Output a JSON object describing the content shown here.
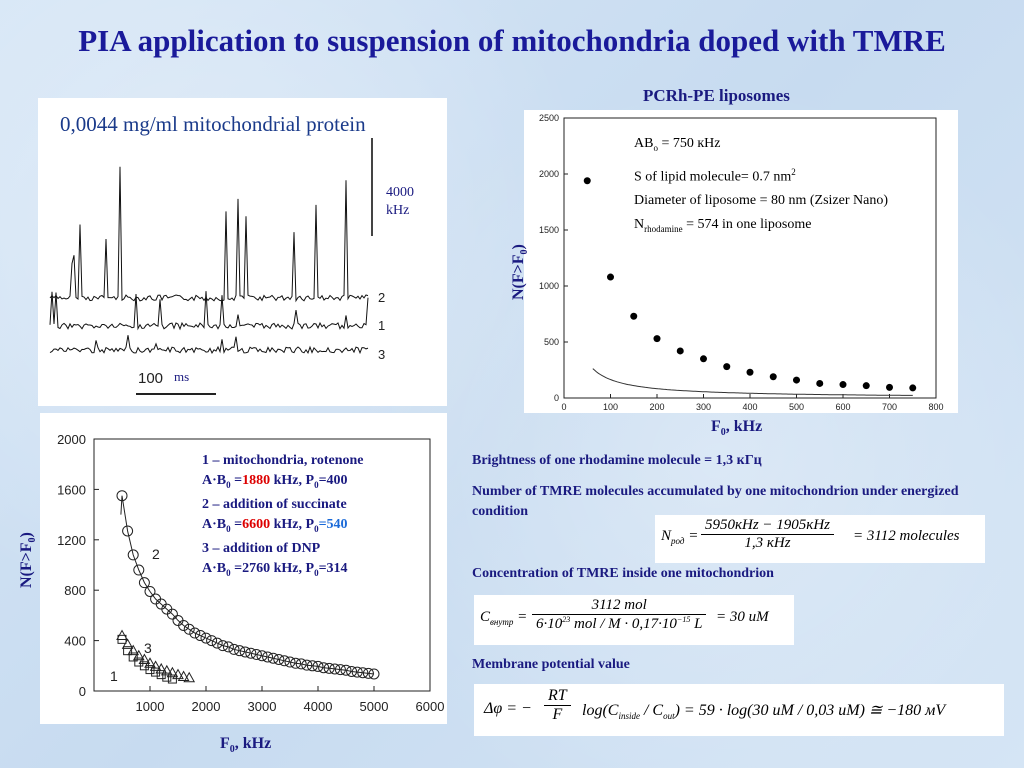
{
  "slide": {
    "title": "PIA application to suspension of mitochondria doped with TMRE",
    "right_chart_title": "PCRh-PE liposomes"
  },
  "trace_panel": {
    "caption": "0,0044 mg/ml mitochondrial protein",
    "scale_value": "4000",
    "scale_unit": "kHz",
    "time_value": "100",
    "time_unit": "ms",
    "trace_labels": [
      "2",
      "1",
      "3"
    ]
  },
  "lower_chart": {
    "ylabel_main": "N(F>F",
    "ylabel_sub": "0",
    "ylabel_end": ")",
    "xlabel_main": "F",
    "xlabel_sub": "0",
    "xlabel_end": ", kHz",
    "legend_lines": [
      {
        "a": "1 – mitochondria, rotenone"
      },
      {
        "a": "A·B",
        "b": "0",
        "c": " =",
        "d": "1880",
        "e": " kHz, P",
        "f": "0",
        "g": "=400",
        "g_color": "#1a1a80"
      },
      {
        "a": "2 – addition of succinate"
      },
      {
        "a": "A·B",
        "b": "0",
        "c": " =",
        "d": "6600",
        "e": " kHz, P",
        "f": "0",
        "g": "=540",
        "g_color": "#1a6ad8"
      },
      {
        "a": "3 – addition of DNP"
      },
      {
        "a": "A·B",
        "b": "0",
        "c": " =",
        "d": "2760",
        "d_color": "#1a1a80",
        "e": " kHz, P",
        "f": "0",
        "g": "=314",
        "g_color": "#1a1a80"
      }
    ],
    "curve_labels": [
      "2",
      "3",
      "1"
    ]
  },
  "upper_chart": {
    "ylabel_main": "N(F>F",
    "ylabel_sub": "0",
    "ylabel_end": ")",
    "xlabel_main": "F",
    "xlabel_sub": "0",
    "xlabel_end": ", kHz",
    "annotations": {
      "ab_a": "AB",
      "ab_sub": "o",
      "ab_b": " = 750 кHz",
      "s_a": "S of lipid molecule= 0.7 nm",
      "s_sup": "2",
      "diameter": "Diameter of liposome = 80 nm (Zsizer Nano)",
      "n_a": "N",
      "n_sub": "rhodamine",
      "n_b": " = 574 in one liposome"
    }
  },
  "notes": {
    "brightness": "Brightness of one rhodamine molecule = 1,3 кГц",
    "number_tmre": "Number of TMRE molecules accumulated by one mitochondrion under energized condition",
    "concentration": "Concentration of TMRE inside one mitochondrion",
    "membrane": "Membrane potential value"
  },
  "formulas": {
    "n_lhs": "N",
    "n_lhs_sub": "род",
    "n_num": "5950кHz − 1905кHz",
    "n_den": "1,3 кHz",
    "n_rhs": "= 3112 molecules",
    "c_lhs": "C",
    "c_lhs_sub": "внутр",
    "c_num": "3112 mol",
    "c_den_a": "6·10",
    "c_den_exp1": "23",
    "c_den_b": " mol / M · 0,17·10",
    "c_den_exp2": "−15",
    "c_den_c": " L",
    "c_rhs": "= 30 uM",
    "d_lhs": "Δφ = −",
    "d_num": "RT",
    "d_den": "F",
    "d_rhs_a": "log(C",
    "d_rhs_sub1": "inside",
    "d_rhs_b": " / C",
    "d_rhs_sub2": "out",
    "d_rhs_c": ") = 59 · log(30 uM / 0,03 uM) ≅ −180 мV"
  },
  "chart_data": [
    {
      "type": "scatter",
      "title": "PCRh-PE liposomes",
      "xlabel": "F0, kHz",
      "ylabel": "N(F>F0)",
      "xlim": [
        0,
        800
      ],
      "ylim": [
        0,
        2500
      ],
      "xticks": [
        0,
        100,
        200,
        300,
        400,
        500,
        600,
        700,
        800
      ],
      "yticks": [
        0,
        500,
        1000,
        1500,
        2000,
        2500
      ],
      "series": [
        {
          "x": [
            50,
            100,
            150,
            200,
            250,
            300,
            350,
            400,
            450,
            500,
            550,
            600,
            650,
            700,
            750
          ],
          "y": [
            1940,
            1080,
            730,
            530,
            420,
            350,
            280,
            230,
            190,
            160,
            130,
            120,
            110,
            95,
            90
          ]
        }
      ],
      "fit_curve": true
    },
    {
      "type": "scatter",
      "xlabel": "F0, kHz",
      "ylabel": "N(F>F0)",
      "xlim": [
        0,
        6000
      ],
      "ylim": [
        0,
        2000
      ],
      "xticks": [
        1000,
        2000,
        3000,
        4000,
        5000,
        6000
      ],
      "yticks": [
        0,
        400,
        800,
        1200,
        1600,
        2000
      ],
      "series": [
        {
          "name": "2",
          "marker": "circle",
          "x": [
            500,
            600,
            700,
            800,
            900,
            1000,
            1100,
            1200,
            1300,
            1400,
            1500,
            1600,
            1700,
            1800,
            1900,
            2000,
            2100,
            2200,
            2300,
            2400,
            2500,
            2600,
            2700,
            2800,
            2900,
            3000,
            3100,
            3200,
            3300,
            3400,
            3500,
            3600,
            3700,
            3800,
            3900,
            4000,
            4100,
            4200,
            4300,
            4400,
            4500,
            4600,
            4700,
            4800,
            4900,
            5000
          ],
          "y": [
            1550,
            1270,
            1080,
            960,
            860,
            790,
            730,
            690,
            650,
            610,
            560,
            520,
            490,
            460,
            440,
            420,
            400,
            380,
            360,
            350,
            330,
            320,
            310,
            300,
            290,
            280,
            270,
            260,
            250,
            240,
            230,
            220,
            215,
            205,
            200,
            195,
            185,
            180,
            175,
            170,
            165,
            155,
            150,
            145,
            140,
            135
          ]
        },
        {
          "name": "3",
          "marker": "triangle",
          "x": [
            500,
            600,
            700,
            800,
            900,
            1000,
            1100,
            1200,
            1300,
            1400,
            1500,
            1600,
            1700
          ],
          "y": [
            440,
            370,
            320,
            280,
            250,
            220,
            195,
            175,
            160,
            145,
            130,
            115,
            105
          ]
        },
        {
          "name": "1",
          "marker": "square",
          "x": [
            500,
            600,
            700,
            800,
            900,
            1000,
            1100,
            1200,
            1300,
            1400
          ],
          "y": [
            410,
            320,
            270,
            230,
            200,
            170,
            150,
            130,
            110,
            95
          ]
        }
      ]
    }
  ]
}
